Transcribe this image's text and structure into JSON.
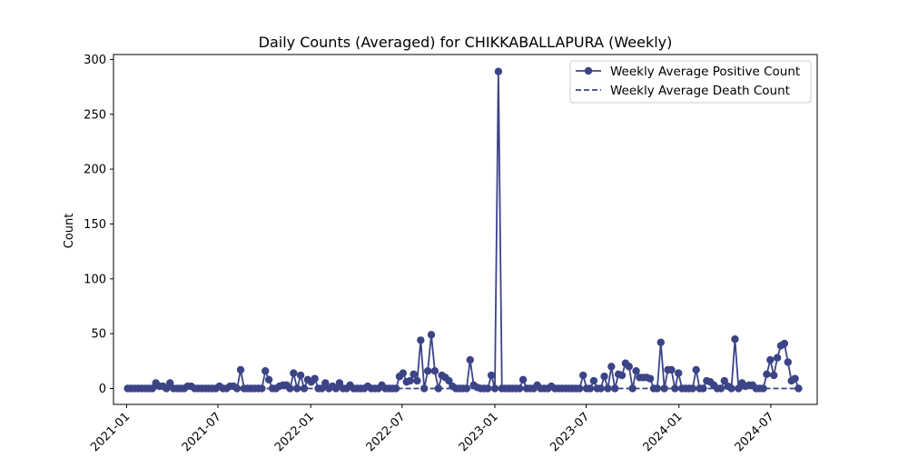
{
  "chart_data": {
    "type": "line",
    "title": "Daily Counts (Averaged) for CHIKKABALLAPURA (Weekly)",
    "xlabel": "",
    "ylabel": "Count",
    "xlim": [
      "2020-12-06",
      "2024-10-01"
    ],
    "ylim": [
      -14.5,
      304.5
    ],
    "x_ticks": [
      {
        "date": "2021-01-01",
        "label": "2021-01"
      },
      {
        "date": "2021-07-01",
        "label": "2021-07"
      },
      {
        "date": "2022-01-01",
        "label": "2022-01"
      },
      {
        "date": "2022-07-01",
        "label": "2022-07"
      },
      {
        "date": "2023-01-01",
        "label": "2023-01"
      },
      {
        "date": "2023-07-01",
        "label": "2023-07"
      },
      {
        "date": "2024-01-01",
        "label": "2024-01"
      },
      {
        "date": "2024-07-01",
        "label": "2024-07"
      }
    ],
    "y_ticks": [
      0,
      50,
      100,
      150,
      200,
      250,
      300
    ],
    "grid": false,
    "legend_position": "top-right",
    "start_date": "2021-01-03",
    "interval_days": 7,
    "series": [
      {
        "name": "Weekly Average Positive Count",
        "style": "solid-marker",
        "color": "#3b4487",
        "values": [
          0,
          0,
          0,
          0,
          0,
          0,
          0,
          0,
          5,
          2,
          2,
          0,
          5,
          0,
          0,
          0,
          0,
          2,
          2,
          0,
          0,
          0,
          0,
          0,
          0,
          0,
          2,
          0,
          0,
          2,
          2,
          0,
          17,
          0,
          0,
          0,
          0,
          0,
          0,
          16,
          8,
          0,
          0,
          2,
          3,
          3,
          0,
          14,
          0,
          12,
          0,
          8,
          6,
          9,
          0,
          0,
          5,
          0,
          2,
          0,
          5,
          0,
          0,
          3,
          0,
          0,
          0,
          0,
          2,
          0,
          0,
          0,
          3,
          0,
          0,
          0,
          0,
          11,
          14,
          6,
          7,
          13,
          7,
          44,
          0,
          16,
          49,
          16,
          0,
          12,
          10,
          7,
          2,
          0,
          0,
          0,
          0,
          26,
          3,
          1,
          0,
          0,
          0,
          12,
          0,
          289,
          0,
          0,
          0,
          0,
          0,
          0,
          8,
          0,
          0,
          0,
          3,
          0,
          0,
          0,
          2,
          0,
          0,
          0,
          0,
          0,
          0,
          0,
          0,
          12,
          0,
          0,
          7,
          0,
          0,
          11,
          0,
          20,
          0,
          13,
          12,
          23,
          20,
          0,
          16,
          10,
          10,
          10,
          9,
          0,
          0,
          42,
          0,
          17,
          17,
          0,
          14,
          0,
          0,
          0,
          0,
          17,
          0,
          0,
          7,
          6,
          3,
          0,
          0,
          7,
          2,
          0,
          45,
          0,
          5,
          2,
          3,
          3,
          0,
          0,
          0,
          13,
          26,
          12,
          28,
          39,
          41,
          24,
          7,
          9,
          0
        ]
      },
      {
        "name": "Weekly Average Death Count",
        "style": "dashed",
        "color": "#3b4487",
        "values": [
          0
        ]
      }
    ]
  }
}
